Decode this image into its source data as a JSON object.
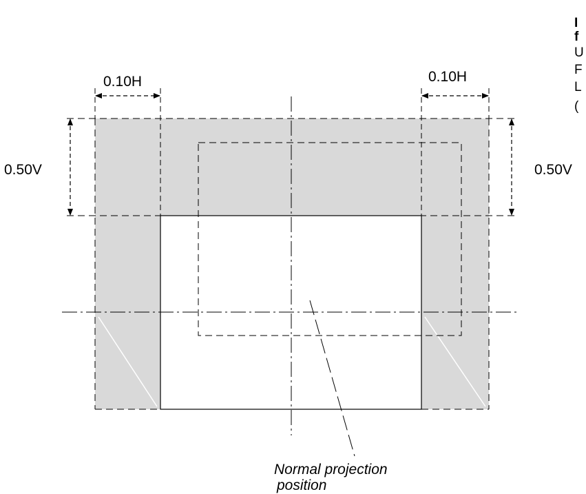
{
  "labels": {
    "left_horizontal": "0.10H",
    "right_horizontal": "0.10H",
    "left_vertical": "0.50V",
    "right_vertical": "0.50V",
    "note_line1": "Normal projection",
    "note_line2": "position"
  },
  "cropped_side_text": [
    "I",
    "f",
    "U",
    "F",
    "L",
    "("
  ],
  "colors": {
    "shift_area": "#d9d9d9",
    "lines": "#000000",
    "background": "#ffffff"
  }
}
